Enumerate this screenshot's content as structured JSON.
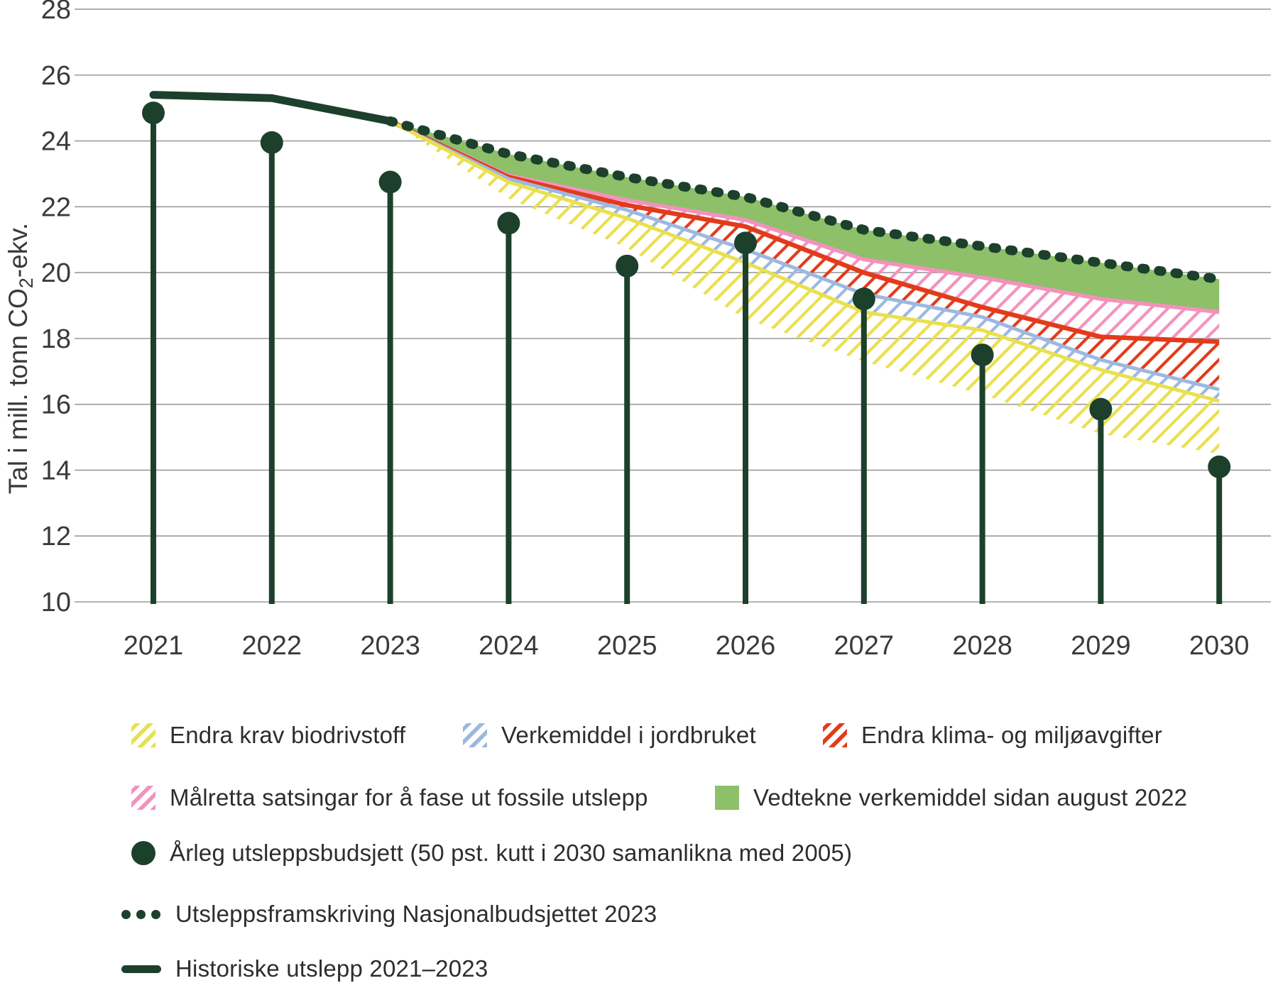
{
  "colors": {
    "dark_green": "#1c402c",
    "green": "#8dc068",
    "pink": "#f392bd",
    "red": "#e23b1c",
    "blue": "#9cb8e0",
    "yellow": "#e9e04f",
    "grid": "#9b9b9b",
    "text": "#2d2d2d"
  },
  "chart_data": {
    "type": "area",
    "title": "",
    "y_axis": {
      "title_prefix": "Tal i mill. tonn CO",
      "title_sub": "2",
      "title_suffix": "-ekv.",
      "min": 10,
      "max": 28,
      "ticks": [
        28,
        26,
        24,
        22,
        20,
        18,
        16,
        14,
        12,
        10
      ]
    },
    "x_axis": {
      "years": [
        2021,
        2022,
        2023,
        2024,
        2025,
        2026,
        2027,
        2028,
        2029,
        2030
      ]
    },
    "historical": {
      "label": "Historiske utslepp 2021–2023",
      "years": [
        2021,
        2022,
        2023
      ],
      "values": [
        25.4,
        25.3,
        24.6
      ]
    },
    "projection": {
      "label": "Utsleppsframskriving Nasjonalbudsjettet 2023",
      "years": [
        2023,
        2024,
        2025,
        2026,
        2027,
        2028,
        2029,
        2030
      ],
      "values": [
        24.6,
        23.6,
        22.9,
        22.3,
        21.3,
        20.8,
        20.3,
        19.8
      ]
    },
    "budget": {
      "label": "Årleg utsleppsbudsjett (50 pst. kutt i 2030 samanlikna med 2005)",
      "years": [
        2021,
        2022,
        2023,
        2024,
        2025,
        2026,
        2027,
        2028,
        2029,
        2030
      ],
      "values": [
        24.85,
        23.95,
        22.75,
        21.5,
        20.2,
        20.9,
        19.2,
        17.5,
        15.85,
        14.1
      ]
    },
    "wedges": {
      "years": [
        2023,
        2024,
        2025,
        2026,
        2027,
        2028,
        2029,
        2030
      ],
      "note": "each band spans from the previous boundary (top) down to its 'lower' boundary",
      "bands": [
        {
          "id": "vedtekne",
          "label": "Vedtekne verkemiddel sidan august 2022",
          "color_key": "green",
          "hatch": false,
          "lower": [
            24.6,
            22.95,
            22.2,
            21.6,
            20.4,
            19.85,
            19.2,
            18.8
          ]
        },
        {
          "id": "malretta",
          "label": "Målretta satsingar for å fase ut fossile utslepp",
          "color_key": "pink",
          "hatch": true,
          "lower": [
            24.6,
            22.9,
            22.05,
            21.4,
            20.0,
            18.95,
            18.05,
            17.9
          ]
        },
        {
          "id": "avgifter",
          "label": "Endra klima- og miljøavgifter",
          "color_key": "red",
          "hatch": true,
          "lower": [
            24.6,
            22.85,
            21.9,
            20.7,
            19.35,
            18.65,
            17.35,
            16.45
          ]
        },
        {
          "id": "jordbruket",
          "label": "Verkemiddel i jordbruket",
          "color_key": "blue",
          "hatch": true,
          "lower": [
            24.6,
            22.75,
            21.65,
            20.3,
            18.8,
            18.25,
            17.05,
            16.1
          ]
        },
        {
          "id": "biodrivstoff",
          "label": "Endra krav biodrivstoff",
          "color_key": "yellow",
          "hatch": true,
          "lower": [
            24.6,
            22.25,
            20.75,
            18.6,
            17.3,
            16.3,
            15.1,
            14.5
          ]
        }
      ]
    }
  }
}
